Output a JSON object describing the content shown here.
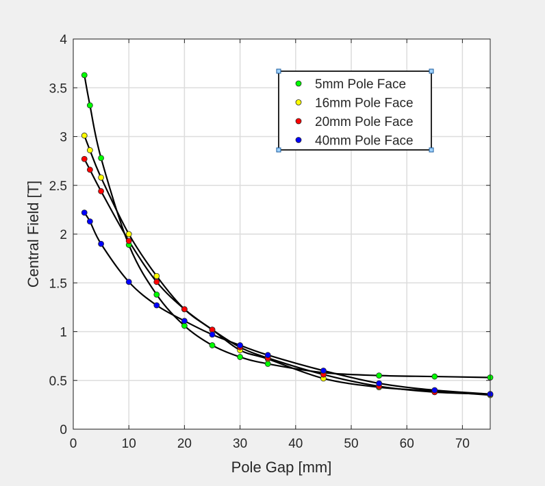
{
  "chart_data": {
    "type": "scatter",
    "title": "",
    "xlabel": "Pole Gap [mm]",
    "ylabel": "Central Field [T]",
    "xlim": [
      0,
      75
    ],
    "ylim": [
      0,
      4
    ],
    "x_ticks": [
      0,
      10,
      20,
      30,
      40,
      50,
      60,
      70
    ],
    "y_ticks": [
      0,
      0.5,
      1,
      1.5,
      2,
      2.5,
      3,
      3.5,
      4
    ],
    "y_tick_labels": [
      "0",
      "0.5",
      "1",
      "1.5",
      "2",
      "2.5",
      "3",
      "3.5",
      "4"
    ],
    "grid": true,
    "legend_position": "top-right",
    "fit_line_color": "#000000",
    "series": [
      {
        "name": "5mm Pole Face",
        "color": "#00ff00",
        "x": [
          2,
          3,
          5,
          10,
          15,
          20,
          25,
          30,
          35,
          45,
          55,
          65,
          75
        ],
        "y": [
          3.63,
          3.32,
          2.78,
          1.89,
          1.38,
          1.06,
          0.86,
          0.74,
          0.67,
          0.58,
          0.55,
          0.54,
          0.53
        ]
      },
      {
        "name": "16mm Pole Face",
        "color": "#ffff00",
        "x": [
          2,
          3,
          5,
          10,
          15,
          20,
          25,
          30,
          35,
          45,
          55,
          65,
          75
        ],
        "y": [
          3.01,
          2.86,
          2.58,
          2.0,
          1.57,
          1.23,
          1.02,
          0.81,
          0.72,
          0.52,
          0.43,
          0.39,
          0.35
        ]
      },
      {
        "name": "20mm Pole Face",
        "color": "#ff0000",
        "x": [
          2,
          3,
          5,
          10,
          15,
          20,
          25,
          30,
          35,
          45,
          55,
          65,
          75
        ],
        "y": [
          2.77,
          2.66,
          2.44,
          1.93,
          1.51,
          1.23,
          1.02,
          0.84,
          0.73,
          0.56,
          0.44,
          0.38,
          0.36
        ]
      },
      {
        "name": "40mm Pole Face",
        "color": "#0000ff",
        "x": [
          2,
          3,
          5,
          10,
          15,
          20,
          25,
          30,
          35,
          45,
          55,
          65,
          75
        ],
        "y": [
          2.22,
          2.13,
          1.9,
          1.51,
          1.27,
          1.11,
          0.97,
          0.86,
          0.76,
          0.6,
          0.47,
          0.4,
          0.36
        ]
      }
    ]
  }
}
